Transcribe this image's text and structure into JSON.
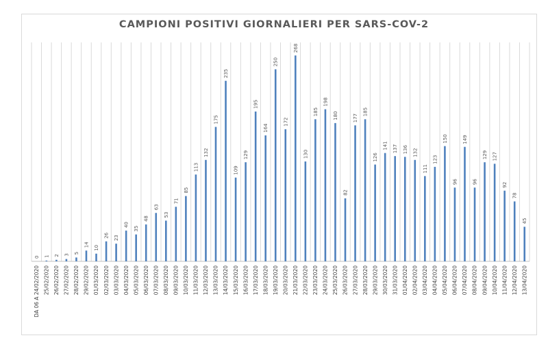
{
  "chart_data": {
    "type": "bar",
    "title": "CAMPIONI POSITIVI GIORNALIERI PER SARS-COV-2",
    "xlabel": "",
    "ylabel": "",
    "ylim": [
      0,
      285
    ],
    "grid": "vertical",
    "legend": "none",
    "bar_color": "#4f81bd",
    "categories": [
      "DA 06 A 24/02/2020",
      "25/02/2020",
      "26/02/2020",
      "27/02/2020",
      "28/02/2020",
      "29/02/2020",
      "01/03/2020",
      "02/03/2020",
      "03/03/2020",
      "04/03/2020",
      "05/03/2020",
      "06/03/2020",
      "07/03/2020",
      "08/03/2020",
      "09/03/2020",
      "10/03/2020",
      "11/03/2020",
      "12/03/2020",
      "13/03/2020",
      "14/03/2020",
      "15/03/2020",
      "16/03/2020",
      "17/03/2020",
      "18/03/2020",
      "19/03/2020",
      "20/03/2020",
      "21/03/2020",
      "22/03/2020",
      "23/03/2020",
      "24/03/2020",
      "25/03/2020",
      "26/03/2020",
      "27/03/2020",
      "28/03/2020",
      "29/03/2020",
      "30/03/2020",
      "31/03/2020",
      "01/04/2020",
      "02/04/2020",
      "03/04/2020",
      "04/04/2020",
      "05/04/2020",
      "06/04/2020",
      "07/04/2020",
      "08/04/2020",
      "09/04/2020",
      "10/04/2020",
      "11/04/2020",
      "12/04/2020",
      "13/04/2020"
    ],
    "values": [
      0,
      1,
      2,
      3,
      5,
      14,
      10,
      26,
      23,
      40,
      35,
      48,
      63,
      53,
      71,
      85,
      113,
      132,
      175,
      235,
      109,
      129,
      195,
      164,
      250,
      172,
      268,
      130,
      185,
      198,
      180,
      82,
      177,
      185,
      126,
      141,
      137,
      136,
      132,
      111,
      123,
      150,
      96,
      149,
      96,
      129,
      127,
      92,
      78,
      45
    ]
  }
}
